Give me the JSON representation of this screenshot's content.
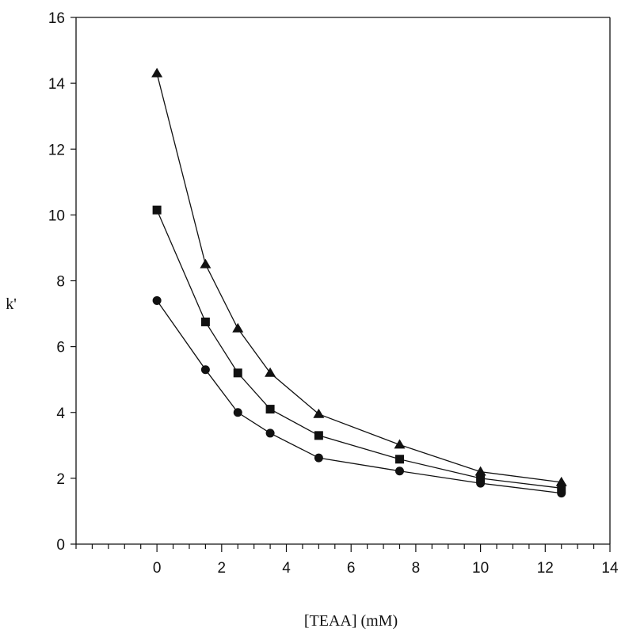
{
  "chart_data": {
    "type": "line",
    "title": "",
    "xlabel": "[TEAA]  (mM)",
    "ylabel": "k'",
    "xlim": [
      -2.5,
      14
    ],
    "ylim": [
      0,
      16
    ],
    "x_ticks": [
      0,
      2,
      4,
      6,
      8,
      10,
      12,
      14
    ],
    "y_ticks": [
      0,
      2,
      4,
      6,
      8,
      10,
      12,
      14,
      16
    ],
    "x_minor_step": 0.5,
    "grid": false,
    "legend": "none",
    "series": [
      {
        "marker": "triangle",
        "color": "#111111",
        "x": [
          0,
          1.5,
          2.5,
          3.5,
          5,
          7.5,
          10,
          12.5
        ],
        "y": [
          14.3,
          8.5,
          6.55,
          5.2,
          3.95,
          3.02,
          2.2,
          1.88
        ]
      },
      {
        "marker": "square",
        "color": "#111111",
        "x": [
          0,
          1.5,
          2.5,
          3.5,
          5,
          7.5,
          10,
          12.5
        ],
        "y": [
          10.15,
          6.75,
          5.2,
          4.1,
          3.3,
          2.58,
          2.0,
          1.7
        ]
      },
      {
        "marker": "circle",
        "color": "#111111",
        "x": [
          0,
          1.5,
          2.5,
          3.5,
          5,
          7.5,
          10,
          12.5
        ],
        "y": [
          7.4,
          5.3,
          4.0,
          3.37,
          2.62,
          2.22,
          1.85,
          1.55
        ]
      }
    ]
  }
}
